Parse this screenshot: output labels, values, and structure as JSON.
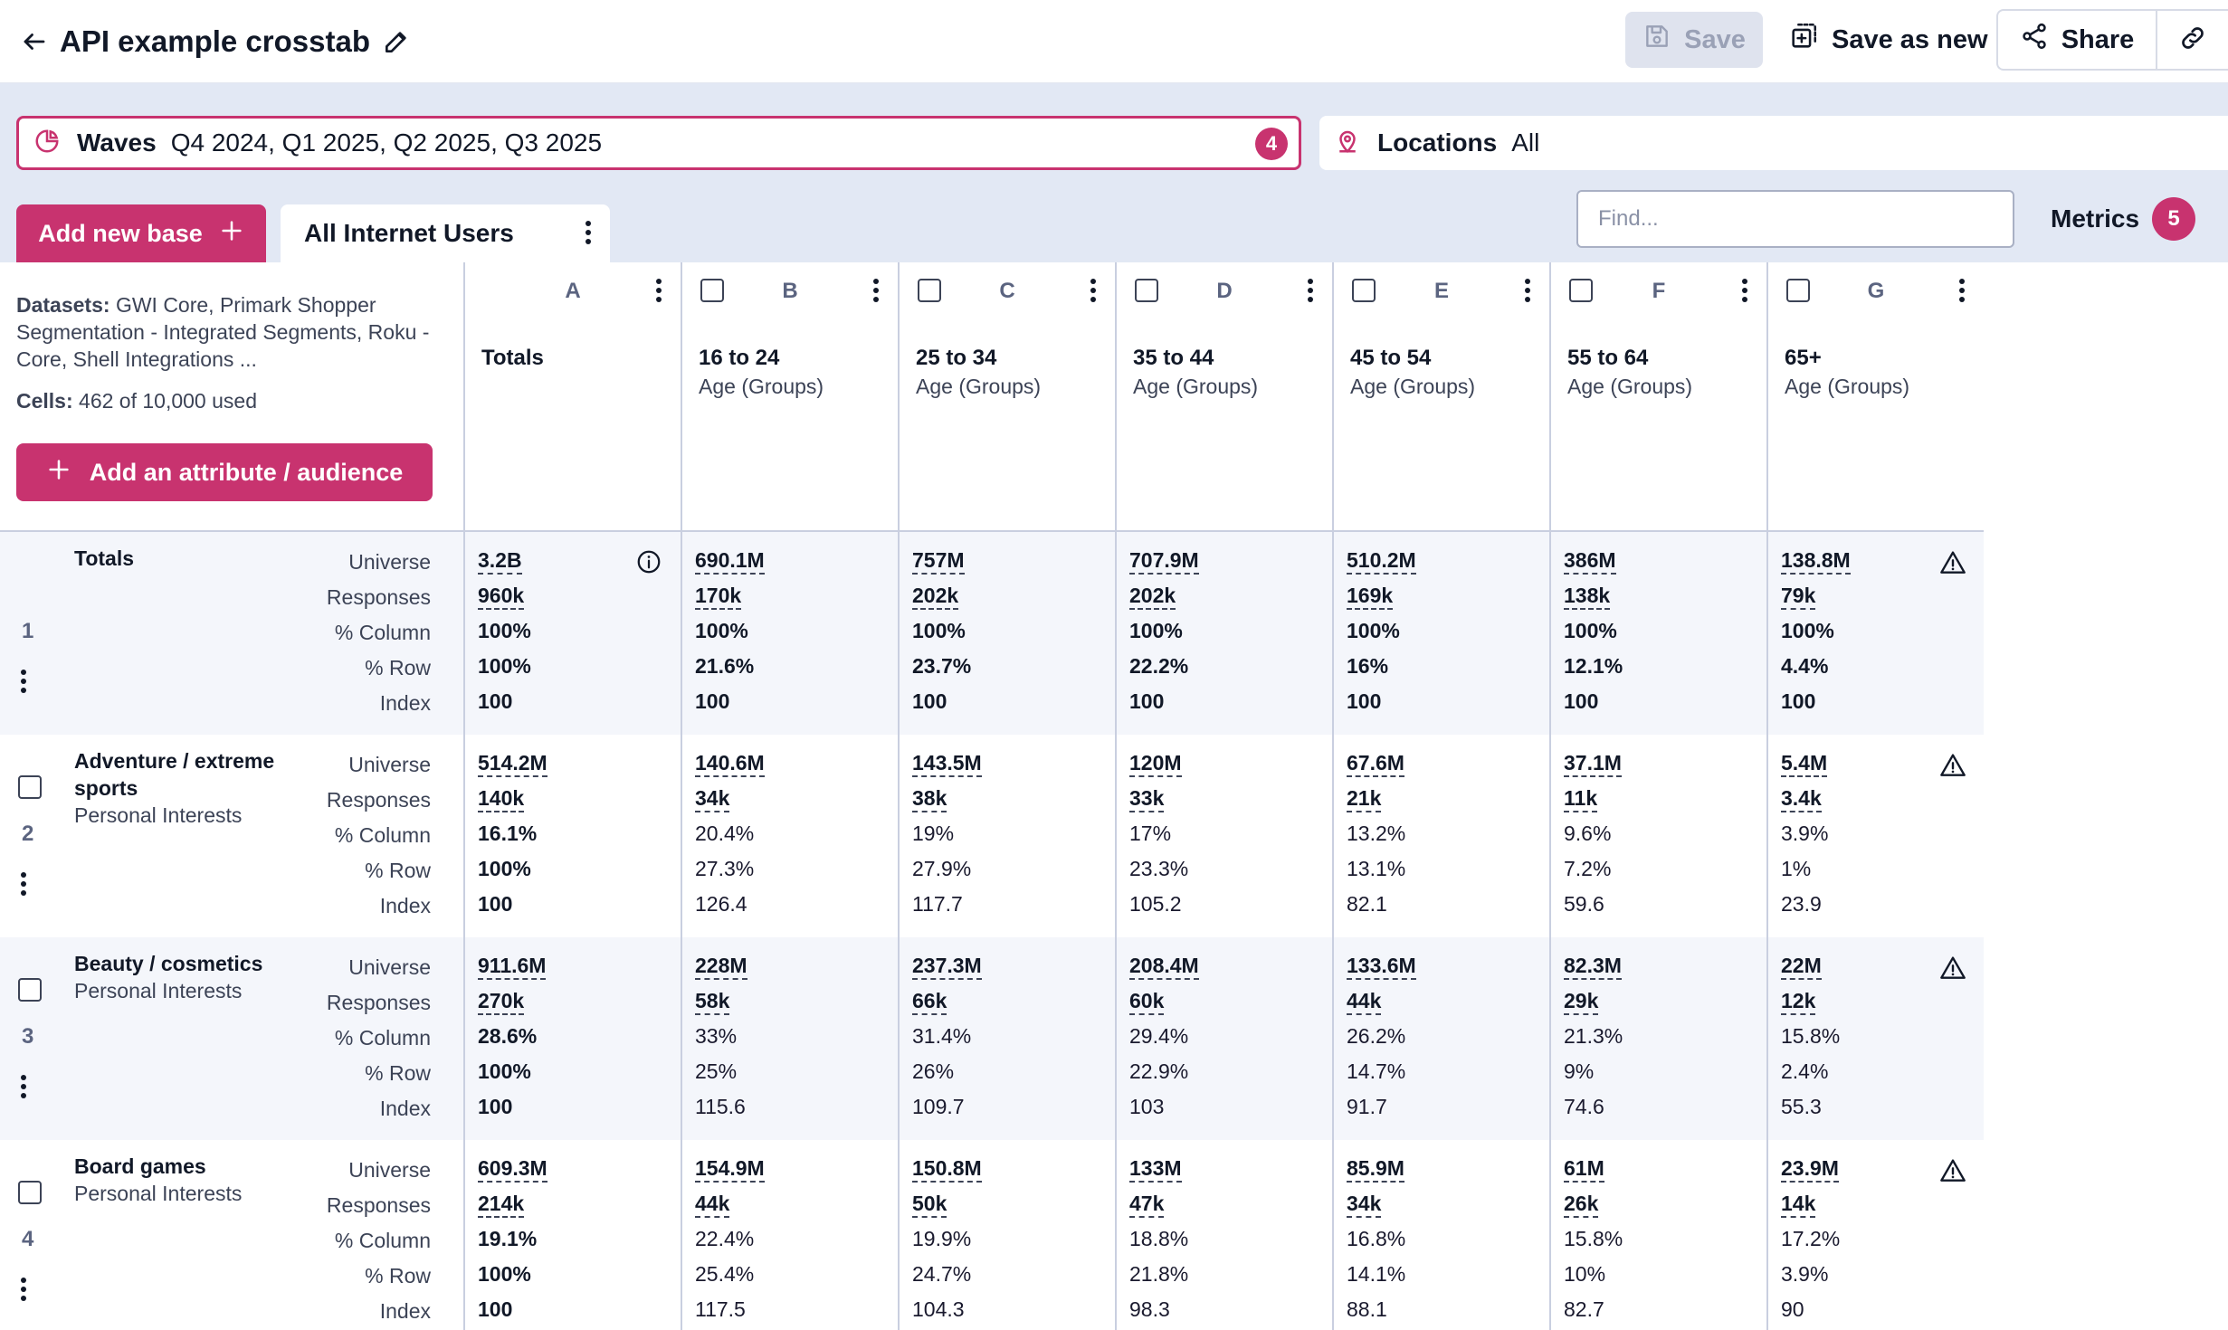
{
  "header": {
    "title": "API example crosstab",
    "save_label": "Save",
    "save_as_new_label": "Save as new",
    "share_label": "Share"
  },
  "filters": {
    "waves_label": "Waves",
    "waves_value": "Q4 2024, Q1 2025, Q2 2025, Q3 2025",
    "waves_count": "4",
    "locations_label": "Locations",
    "locations_value": "All"
  },
  "bases": {
    "add_label": "Add new base",
    "active_tab": "All Internet Users"
  },
  "search": {
    "placeholder": "Find..."
  },
  "metrics": {
    "label": "Metrics",
    "count": "5"
  },
  "info_panel": {
    "datasets_label": "Datasets:",
    "datasets_value": "GWI Core, Primark Shopper Segmentation - Integrated Segments, Roku - Core, Shell Integrations ...",
    "cells_label": "Cells:",
    "cells_value": "462 of 10,000 used",
    "add_attr_label": "Add an attribute / audience"
  },
  "metric_labels": [
    "Universe",
    "Responses",
    "% Column",
    "% Row",
    "Index"
  ],
  "columns": [
    {
      "letter": "A",
      "name": "Totals",
      "sub": ""
    },
    {
      "letter": "B",
      "name": "16 to 24",
      "sub": "Age (Groups)"
    },
    {
      "letter": "C",
      "name": "25 to 34",
      "sub": "Age (Groups)"
    },
    {
      "letter": "D",
      "name": "35 to 44",
      "sub": "Age (Groups)"
    },
    {
      "letter": "E",
      "name": "45 to 54",
      "sub": "Age (Groups)"
    },
    {
      "letter": "F",
      "name": "55 to 64",
      "sub": "Age (Groups)"
    },
    {
      "letter": "G",
      "name": "65+",
      "sub": "Age (Groups)"
    }
  ],
  "rows": [
    {
      "num": "1",
      "name": "Totals",
      "sub": "",
      "is_totals": true,
      "cells": [
        [
          "3.2B",
          "960k",
          "100%",
          "100%",
          "100"
        ],
        [
          "690.1M",
          "170k",
          "100%",
          "21.6%",
          "100"
        ],
        [
          "757M",
          "202k",
          "100%",
          "23.7%",
          "100"
        ],
        [
          "707.9M",
          "202k",
          "100%",
          "22.2%",
          "100"
        ],
        [
          "510.2M",
          "169k",
          "100%",
          "16%",
          "100"
        ],
        [
          "386M",
          "138k",
          "100%",
          "12.1%",
          "100"
        ],
        [
          "138.8M",
          "79k",
          "100%",
          "4.4%",
          "100"
        ]
      ]
    },
    {
      "num": "2",
      "name": "Adventure / extreme sports",
      "sub": "Personal Interests",
      "is_totals": false,
      "cells": [
        [
          "514.2M",
          "140k",
          "16.1%",
          "100%",
          "100"
        ],
        [
          "140.6M",
          "34k",
          "20.4%",
          "27.3%",
          "126.4"
        ],
        [
          "143.5M",
          "38k",
          "19%",
          "27.9%",
          "117.7"
        ],
        [
          "120M",
          "33k",
          "17%",
          "23.3%",
          "105.2"
        ],
        [
          "67.6M",
          "21k",
          "13.2%",
          "13.1%",
          "82.1"
        ],
        [
          "37.1M",
          "11k",
          "9.6%",
          "7.2%",
          "59.6"
        ],
        [
          "5.4M",
          "3.4k",
          "3.9%",
          "1%",
          "23.9"
        ]
      ]
    },
    {
      "num": "3",
      "name": "Beauty / cosmetics",
      "sub": "Personal Interests",
      "is_totals": false,
      "cells": [
        [
          "911.6M",
          "270k",
          "28.6%",
          "100%",
          "100"
        ],
        [
          "228M",
          "58k",
          "33%",
          "25%",
          "115.6"
        ],
        [
          "237.3M",
          "66k",
          "31.4%",
          "26%",
          "109.7"
        ],
        [
          "208.4M",
          "60k",
          "29.4%",
          "22.9%",
          "103"
        ],
        [
          "133.6M",
          "44k",
          "26.2%",
          "14.7%",
          "91.7"
        ],
        [
          "82.3M",
          "29k",
          "21.3%",
          "9%",
          "74.6"
        ],
        [
          "22M",
          "12k",
          "15.8%",
          "2.4%",
          "55.3"
        ]
      ]
    },
    {
      "num": "4",
      "name": "Board games",
      "sub": "Personal Interests",
      "is_totals": false,
      "cells": [
        [
          "609.3M",
          "214k",
          "19.1%",
          "100%",
          "100"
        ],
        [
          "154.9M",
          "44k",
          "22.4%",
          "25.4%",
          "117.5"
        ],
        [
          "150.8M",
          "50k",
          "19.9%",
          "24.7%",
          "104.3"
        ],
        [
          "133M",
          "47k",
          "18.8%",
          "21.8%",
          "98.3"
        ],
        [
          "85.9M",
          "34k",
          "16.8%",
          "14.1%",
          "88.1"
        ],
        [
          "61M",
          "26k",
          "15.8%",
          "10%",
          "82.7"
        ],
        [
          "23.9M",
          "14k",
          "17.2%",
          "3.9%",
          "90"
        ]
      ]
    }
  ],
  "colors": {
    "accent": "#c8336f",
    "band": "#e2e8f4",
    "row_alt": "#f4f6fb",
    "disabled": "#dfe3ee"
  },
  "icons": {
    "back": "arrow-left-icon",
    "edit": "pencil-icon",
    "save": "floppy-disk-icon",
    "save_as_new": "copy-plus-icon",
    "share": "share-nodes-icon",
    "link": "link-icon",
    "waves": "pie-chart-icon",
    "locations": "location-pin-icon",
    "totals_info": "info-circle-icon",
    "row_warning": "warning-triangle-icon"
  }
}
